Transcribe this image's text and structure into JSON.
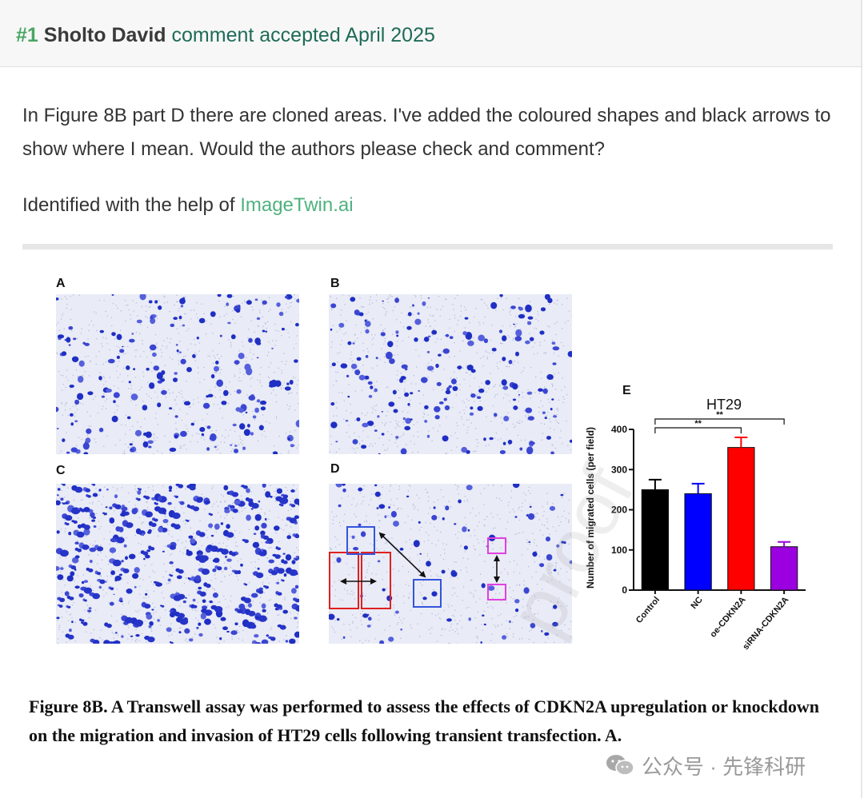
{
  "comment_header": {
    "number": "#1",
    "author": "Sholto David",
    "status_text": "comment accepted April 2025"
  },
  "comment": {
    "body": "In Figure 8B part D there are cloned areas. I've added the coloured shapes and black arrows to show where I mean. Would the authors please check and comment?",
    "identified_prefix": "Identified with the help of ",
    "identified_link": "ImageTwin.ai"
  },
  "figure": {
    "panels": [
      {
        "label": "A",
        "density": 0.22,
        "seed": 11
      },
      {
        "label": "B",
        "density": 0.2,
        "seed": 29
      },
      {
        "label": "C",
        "density": 0.42,
        "seed": 47
      },
      {
        "label": "D",
        "density": 0.1,
        "seed": 83
      }
    ],
    "caption": "Figure 8B. A Transwell assay was performed to assess the effects of CDKN2A upregulation or knockdown on the migration and invasion of HT29 cells following transient transfection. A.",
    "annotation_colors": {
      "red": "#e02020",
      "blue": "#3355dd",
      "magenta": "#e040e0",
      "arrow": "#111111"
    }
  },
  "chart_data": {
    "type": "bar",
    "panel_label": "E",
    "title": "HT29",
    "categories": [
      "Control",
      "NC",
      "oe-CDKN2A",
      "siRNA-CDKN2A"
    ],
    "values": [
      250,
      240,
      355,
      108
    ],
    "errors": [
      25,
      25,
      25,
      12
    ],
    "colors": [
      "#000000",
      "#0000ff",
      "#ff0000",
      "#9a00e0"
    ],
    "xlabel": "",
    "ylabel": "Number of migrated cells (per field)",
    "ylim": [
      0,
      400
    ],
    "yticks": [
      "0",
      "100",
      "200",
      "300",
      "400"
    ],
    "significance": [
      {
        "from": "Control",
        "to": "oe-CDKN2A",
        "label": "**"
      },
      {
        "from": "Control",
        "to": "siRNA-CDKN2A",
        "label": "**"
      }
    ]
  },
  "watermark": {
    "text": "公众号 · 先锋科研",
    "faded_overlay": "proof"
  }
}
